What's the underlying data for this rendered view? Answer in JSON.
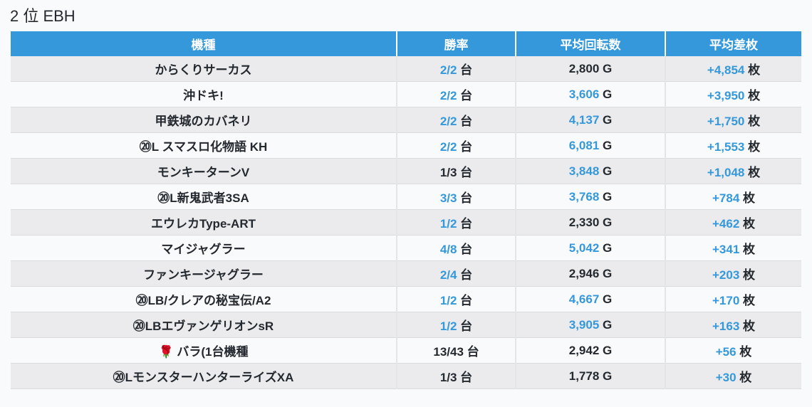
{
  "page": {
    "title": "2 位 EBH"
  },
  "colors": {
    "header_bg": "#3498db",
    "highlight_text": "#3498db",
    "dark_text": "#24292f",
    "row_stripe": "#ebebed",
    "row_plain": "#f9fafb"
  },
  "table": {
    "headers": [
      "機種",
      "勝率",
      "平均回転数",
      "平均差枚"
    ],
    "rows": [
      {
        "machine": "からくりサーカス",
        "win_rate": {
          "value": "2/2",
          "unit": "台",
          "highlight": true
        },
        "avg_spins": {
          "value": "2,800",
          "unit": "G",
          "highlight": false
        },
        "avg_diff": {
          "value": "+4,854",
          "unit": "枚",
          "highlight": true
        }
      },
      {
        "machine": "沖ドキ!",
        "win_rate": {
          "value": "2/2",
          "unit": "台",
          "highlight": true
        },
        "avg_spins": {
          "value": "3,606",
          "unit": "G",
          "highlight": true
        },
        "avg_diff": {
          "value": "+3,950",
          "unit": "枚",
          "highlight": true
        }
      },
      {
        "machine": "甲鉄城のカバネリ",
        "win_rate": {
          "value": "2/2",
          "unit": "台",
          "highlight": true
        },
        "avg_spins": {
          "value": "4,137",
          "unit": "G",
          "highlight": true
        },
        "avg_diff": {
          "value": "+1,750",
          "unit": "枚",
          "highlight": true
        }
      },
      {
        "machine": "⑳L スマスロ化物語 KH",
        "win_rate": {
          "value": "2/2",
          "unit": "台",
          "highlight": true
        },
        "avg_spins": {
          "value": "6,081",
          "unit": "G",
          "highlight": true
        },
        "avg_diff": {
          "value": "+1,553",
          "unit": "枚",
          "highlight": true
        }
      },
      {
        "machine": "モンキーターンV",
        "win_rate": {
          "value": "1/3",
          "unit": "台",
          "highlight": false
        },
        "avg_spins": {
          "value": "3,848",
          "unit": "G",
          "highlight": true
        },
        "avg_diff": {
          "value": "+1,048",
          "unit": "枚",
          "highlight": true
        }
      },
      {
        "machine": "⑳L新鬼武者3SA",
        "win_rate": {
          "value": "3/3",
          "unit": "台",
          "highlight": true
        },
        "avg_spins": {
          "value": "3,768",
          "unit": "G",
          "highlight": true
        },
        "avg_diff": {
          "value": "+784",
          "unit": "枚",
          "highlight": true
        }
      },
      {
        "machine": "エウレカType-ART",
        "win_rate": {
          "value": "1/2",
          "unit": "台",
          "highlight": true
        },
        "avg_spins": {
          "value": "2,330",
          "unit": "G",
          "highlight": false
        },
        "avg_diff": {
          "value": "+462",
          "unit": "枚",
          "highlight": true
        }
      },
      {
        "machine": "マイジャグラー",
        "win_rate": {
          "value": "4/8",
          "unit": "台",
          "highlight": true
        },
        "avg_spins": {
          "value": "5,042",
          "unit": "G",
          "highlight": true
        },
        "avg_diff": {
          "value": "+341",
          "unit": "枚",
          "highlight": true
        }
      },
      {
        "machine": "ファンキージャグラー",
        "win_rate": {
          "value": "2/4",
          "unit": "台",
          "highlight": true
        },
        "avg_spins": {
          "value": "2,946",
          "unit": "G",
          "highlight": false
        },
        "avg_diff": {
          "value": "+203",
          "unit": "枚",
          "highlight": true
        }
      },
      {
        "machine": "⑳LB/クレアの秘宝伝/A2",
        "win_rate": {
          "value": "1/2",
          "unit": "台",
          "highlight": true
        },
        "avg_spins": {
          "value": "4,667",
          "unit": "G",
          "highlight": true
        },
        "avg_diff": {
          "value": "+170",
          "unit": "枚",
          "highlight": true
        }
      },
      {
        "machine": "⑳LBエヴァンゲリオンsR",
        "win_rate": {
          "value": "1/2",
          "unit": "台",
          "highlight": true
        },
        "avg_spins": {
          "value": "3,905",
          "unit": "G",
          "highlight": true
        },
        "avg_diff": {
          "value": "+163",
          "unit": "枚",
          "highlight": true
        }
      },
      {
        "machine": "🌹 バラ(1台機種",
        "win_rate": {
          "value": "13/43",
          "unit": "台",
          "highlight": false
        },
        "avg_spins": {
          "value": "2,942",
          "unit": "G",
          "highlight": false
        },
        "avg_diff": {
          "value": "+56",
          "unit": "枚",
          "highlight": true
        }
      },
      {
        "machine": "⑳LモンスターハンターライズXA",
        "win_rate": {
          "value": "1/3",
          "unit": "台",
          "highlight": false
        },
        "avg_spins": {
          "value": "1,778",
          "unit": "G",
          "highlight": false
        },
        "avg_diff": {
          "value": "+30",
          "unit": "枚",
          "highlight": true
        }
      }
    ]
  }
}
